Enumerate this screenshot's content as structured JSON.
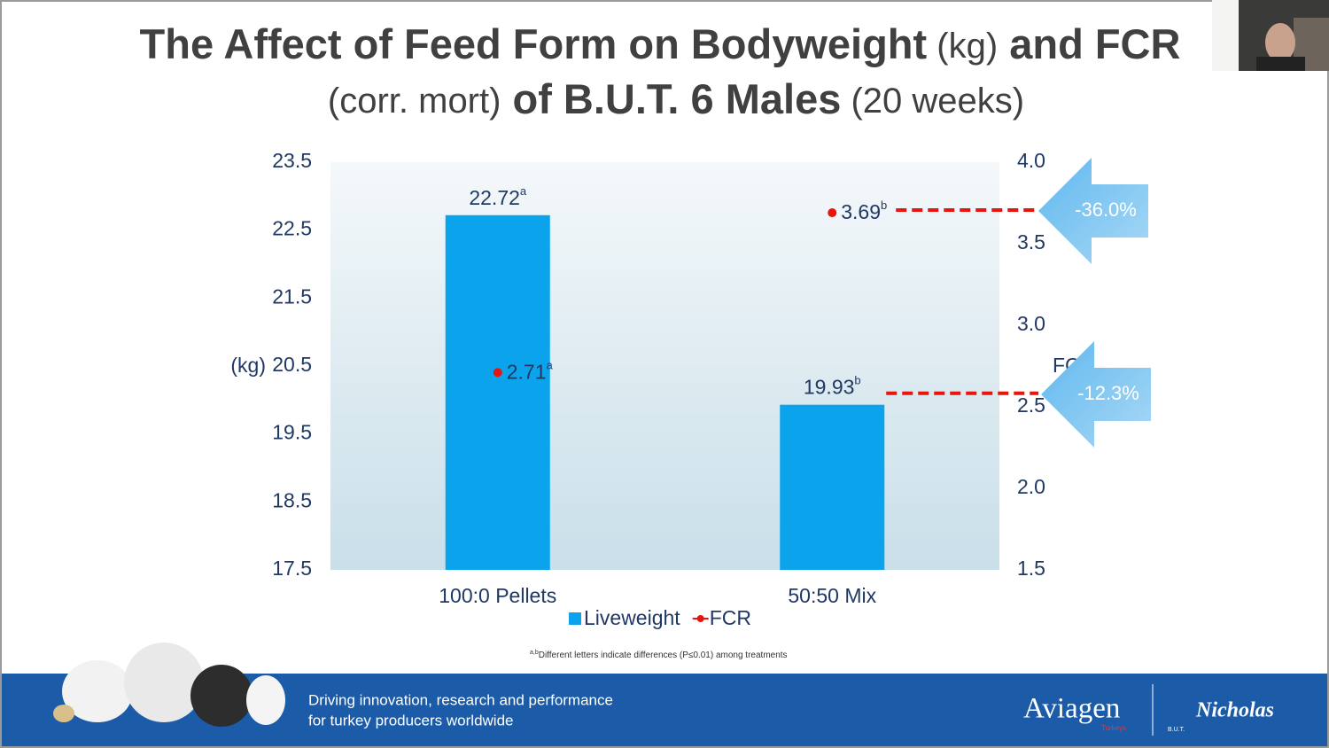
{
  "chart_data": {
    "type": "bar",
    "title_line1": [
      "The Affect of Feed Form on Bodyweight",
      " (kg)",
      " and FCR"
    ],
    "title_line2": [
      "(corr. mort)",
      " of B.U.T. 6 Males",
      " (20 weeks)"
    ],
    "ylabel": "(kg)",
    "y2label": "FCR",
    "categories": [
      "100:0 Pellets",
      "50:50 Mix"
    ],
    "series": [
      {
        "name": "Liveweight",
        "color": "#0aa3ec",
        "values": [
          22.72,
          19.93
        ],
        "value_labels": [
          "22.72",
          "19.93"
        ],
        "superscripts": [
          "a",
          "b"
        ]
      },
      {
        "name": "FCR",
        "type": "scatter",
        "axis": "y2",
        "color": "#e8150e",
        "values": [
          2.71,
          3.69
        ],
        "value_labels": [
          "2.71",
          "3.69"
        ],
        "superscripts": [
          "a",
          "b"
        ]
      }
    ],
    "ylim": [
      17.5,
      23.5
    ],
    "yticks": [
      17.5,
      18.5,
      19.5,
      20.5,
      21.5,
      22.5,
      23.5
    ],
    "y2lim": [
      1.5,
      4.0
    ],
    "y2ticks": [
      {
        "value": 1.5,
        "label": "1.5"
      },
      {
        "value": 2.0,
        "label": "2.0"
      },
      {
        "value": 2.5,
        "label": "2.5"
      },
      {
        "value": 3.0,
        "label": "3.0"
      },
      {
        "value": 3.5,
        "label": "3.5"
      },
      {
        "value": 4.0,
        "label": "4.0"
      }
    ],
    "annotations": [
      "-36.0%",
      "-12.3%"
    ],
    "footnote_sup": "a,b",
    "footnote": "Different letters indicate differences (P≤0.01) among treatments"
  },
  "footer": {
    "tagline": [
      "Driving innovation, research and performance",
      "for turkey producers worldwide"
    ],
    "logos": [
      "Aviagen",
      "Turkeys",
      "B.U.T.",
      "Nicholas"
    ]
  }
}
